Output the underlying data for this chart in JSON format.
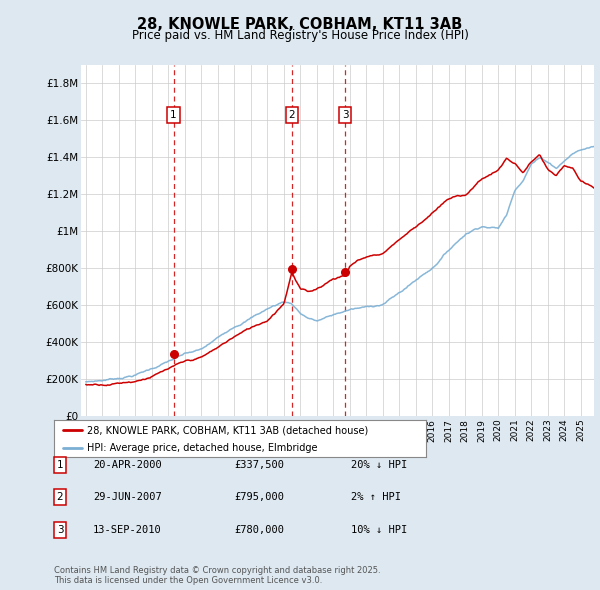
{
  "title": "28, KNOWLE PARK, COBHAM, KT11 3AB",
  "subtitle": "Price paid vs. HM Land Registry's House Price Index (HPI)",
  "ylabel_ticks": [
    "£0",
    "£200K",
    "£400K",
    "£600K",
    "£800K",
    "£1M",
    "£1.2M",
    "£1.4M",
    "£1.6M",
    "£1.8M"
  ],
  "ytick_values": [
    0,
    200000,
    400000,
    600000,
    800000,
    1000000,
    1200000,
    1400000,
    1600000,
    1800000
  ],
  "ylim": [
    0,
    1900000
  ],
  "xlim_start": 1994.7,
  "xlim_end": 2025.8,
  "sale_dates": [
    2000.31,
    2007.49,
    2010.71
  ],
  "sale_prices": [
    337500,
    795000,
    780000
  ],
  "sale_labels": [
    "1",
    "2",
    "3"
  ],
  "sale_date_strs": [
    "20-APR-2000",
    "29-JUN-2007",
    "13-SEP-2010"
  ],
  "sale_price_strs": [
    "£337,500",
    "£795,000",
    "£780,000"
  ],
  "sale_hpi_strs": [
    "20% ↓ HPI",
    "2% ↑ HPI",
    "10% ↓ HPI"
  ],
  "legend_label_red": "28, KNOWLE PARK, COBHAM, KT11 3AB (detached house)",
  "legend_label_blue": "HPI: Average price, detached house, Elmbridge",
  "footer": "Contains HM Land Registry data © Crown copyright and database right 2025.\nThis data is licensed under the Open Government Licence v3.0.",
  "line_color_red": "#cc0000",
  "line_color_blue": "#7bafd4",
  "bg_color": "#dde8f0",
  "plot_bg": "#ffffff",
  "vline_color": "#cc0000",
  "box_color": "#cc0000",
  "hpi_waypoints_x": [
    1995,
    1996,
    1997,
    1998,
    1999,
    2000,
    2001,
    2002,
    2003,
    2004,
    2005,
    2006,
    2007,
    2007.5,
    2008,
    2008.5,
    2009,
    2009.5,
    2010,
    2010.5,
    2011,
    2012,
    2013,
    2014,
    2015,
    2016,
    2017,
    2018,
    2019,
    2020,
    2020.5,
    2021,
    2021.5,
    2022,
    2022.5,
    2023,
    2023.5,
    2024,
    2024.5,
    2025,
    2025.8
  ],
  "hpi_waypoints_y": [
    185000,
    195000,
    210000,
    230000,
    265000,
    305000,
    340000,
    360000,
    420000,
    490000,
    540000,
    590000,
    630000,
    620000,
    570000,
    545000,
    530000,
    545000,
    560000,
    575000,
    590000,
    600000,
    620000,
    680000,
    750000,
    820000,
    920000,
    1010000,
    1060000,
    1050000,
    1120000,
    1260000,
    1320000,
    1410000,
    1440000,
    1420000,
    1390000,
    1430000,
    1470000,
    1490000,
    1510000
  ],
  "red_waypoints_x": [
    1995,
    1996,
    1997,
    1998,
    1999,
    2000,
    2001,
    2002,
    2003,
    2004,
    2005,
    2006,
    2007,
    2007.49,
    2007.7,
    2008,
    2008.5,
    2009,
    2009.5,
    2010,
    2010.71,
    2010.9,
    2011,
    2011.5,
    2012,
    2013,
    2014,
    2015,
    2016,
    2017,
    2018,
    2019,
    2020,
    2020.5,
    2021,
    2021.5,
    2022,
    2022.5,
    2023,
    2023.5,
    2024,
    2024.5,
    2025,
    2025.8
  ],
  "red_waypoints_y": [
    170000,
    178000,
    190000,
    205000,
    235000,
    270000,
    300000,
    320000,
    370000,
    430000,
    475000,
    520000,
    620000,
    795000,
    750000,
    700000,
    680000,
    700000,
    730000,
    760000,
    780000,
    810000,
    830000,
    860000,
    880000,
    900000,
    980000,
    1050000,
    1130000,
    1200000,
    1220000,
    1310000,
    1360000,
    1420000,
    1390000,
    1340000,
    1400000,
    1430000,
    1350000,
    1310000,
    1360000,
    1350000,
    1270000,
    1230000
  ]
}
